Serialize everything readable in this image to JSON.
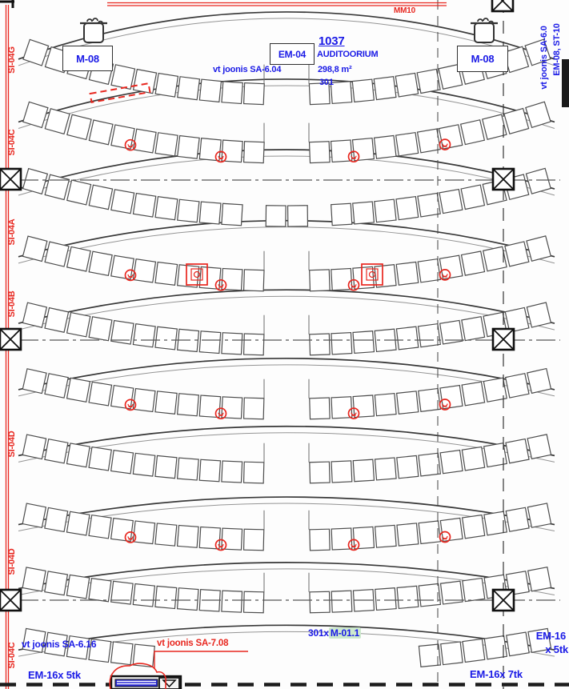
{
  "colors": {
    "blue": "#1a1ae6",
    "red": "#e8271f",
    "green_highlight": "#cde9cd"
  },
  "header": {
    "room_number": "1037",
    "room_name": "AUDITOORIUM",
    "ref_note": "vt joonis SA-6.04",
    "area": "298,8 m²",
    "room_code": "301",
    "em_box_label": "EM-04",
    "wall_label": "MM10",
    "m08_left": "M-08",
    "m08_right": "M-08"
  },
  "right_notes": {
    "line1": "vt joonis SA-6.0",
    "line2": "EM-08, ST-10"
  },
  "left_labels": [
    "SI-04G",
    "SI-04C",
    "SI-04A",
    "SI-04B",
    "SI-04D",
    "SI-04D",
    "SI-04C"
  ],
  "bottom": {
    "note_blue": "vt joonis SA-6.16",
    "em_left": "EM-16x 5tk",
    "note_red": "vt joonis SA-7.08",
    "tag_prefix": "301x",
    "tag_highlight": "M-01.1",
    "em_right_1": "EM-16",
    "em_right_2": "x 5tk",
    "em_right_3": "EM-16x 7tk"
  }
}
